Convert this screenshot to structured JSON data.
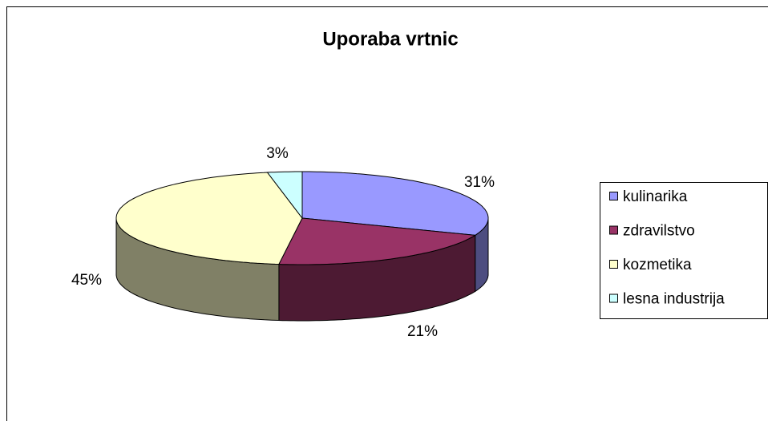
{
  "chart_data": {
    "type": "pie",
    "title": "Uporaba vrtnic",
    "categories": [
      "kulinarika",
      "zdravilstvo",
      "kozmetika",
      "lesna industrija"
    ],
    "values": [
      31,
      21,
      45,
      3
    ],
    "value_labels": [
      "31%",
      "21%",
      "45%",
      "3%"
    ],
    "colors": [
      "#9999ff",
      "#993366",
      "#ffffcc",
      "#ccffff"
    ],
    "legend": "right"
  }
}
